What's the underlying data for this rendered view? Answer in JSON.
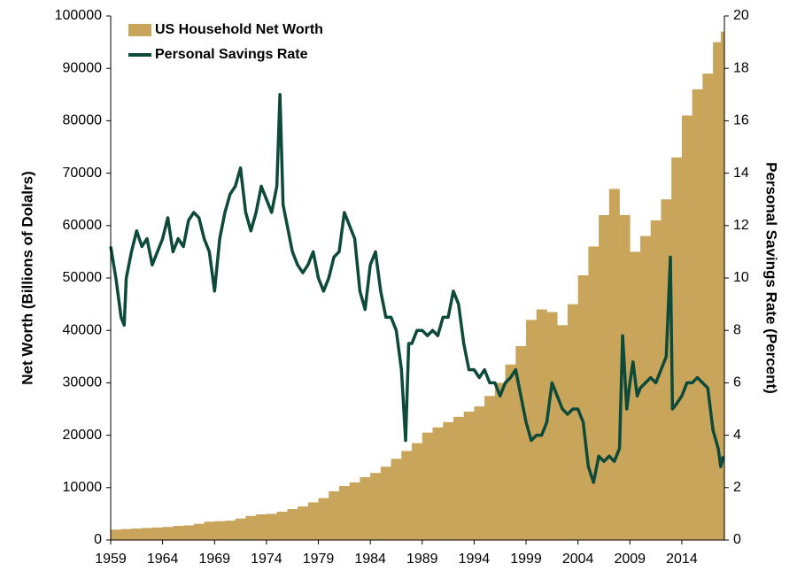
{
  "chart_data": {
    "type": "bar-line",
    "ylabel": "Net Worth (Billions of Dolalrs)",
    "y2label": "Personal Savings Rate (Percent)",
    "xlim": [
      1959,
      2018.1
    ],
    "xticks": [
      1959,
      1964,
      1969,
      1974,
      1979,
      1984,
      1989,
      1994,
      1999,
      2004,
      2009,
      2014
    ],
    "ylim": [
      0,
      100000
    ],
    "yticks": [
      0,
      10000,
      20000,
      30000,
      40000,
      50000,
      60000,
      70000,
      80000,
      90000,
      100000
    ],
    "y2lim": [
      0,
      20
    ],
    "y2ticks": [
      0,
      2,
      4,
      6,
      8,
      10,
      12,
      14,
      16,
      18,
      20
    ],
    "legend": "upper left",
    "series": [
      {
        "name": "US Household Net Worth",
        "color": "#c9a55c",
        "type": "bar",
        "x": [
          1959,
          1960,
          1961,
          1962,
          1963,
          1964,
          1965,
          1966,
          1967,
          1968,
          1969,
          1970,
          1971,
          1972,
          1973,
          1974,
          1975,
          1976,
          1977,
          1978,
          1979,
          1980,
          1981,
          1982,
          1983,
          1984,
          1985,
          1986,
          1987,
          1988,
          1989,
          1990,
          1991,
          1992,
          1993,
          1994,
          1995,
          1996,
          1997,
          1998,
          1999,
          2000,
          2001,
          2002,
          2003,
          2004,
          2005,
          2006,
          2007,
          2008,
          2009,
          2010,
          2011,
          2012,
          2013,
          2014,
          2015,
          2016,
          2017,
          2017.75
        ],
        "values": [
          2000,
          2100,
          2200,
          2300,
          2400,
          2500,
          2700,
          2800,
          3100,
          3500,
          3600,
          3700,
          4100,
          4600,
          4900,
          5000,
          5400,
          5900,
          6400,
          7200,
          8000,
          9300,
          10300,
          11000,
          12000,
          12800,
          14000,
          15500,
          17000,
          18500,
          20500,
          21500,
          22500,
          23500,
          24500,
          25500,
          27500,
          30000,
          33500,
          37000,
          42000,
          44000,
          43500,
          41000,
          45000,
          50500,
          56000,
          62000,
          67000,
          62000,
          55000,
          58000,
          61000,
          65000,
          73000,
          81000,
          86000,
          89000,
          95000,
          97000
        ]
      },
      {
        "name": "Personal Savings Rate",
        "color": "#0d4a3a",
        "type": "line",
        "axis": "y2",
        "x": [
          1959,
          1959.5,
          1960,
          1960.3,
          1960.5,
          1961,
          1961.5,
          1962,
          1962.5,
          1963,
          1963.5,
          1964,
          1964.5,
          1965,
          1965.5,
          1966,
          1966.5,
          1967,
          1967.5,
          1968,
          1968.5,
          1969,
          1969.5,
          1970,
          1970.5,
          1971,
          1971.5,
          1972,
          1972.5,
          1973,
          1973.5,
          1974,
          1974.5,
          1975,
          1975.3,
          1975.6,
          1976,
          1976.5,
          1977,
          1977.5,
          1978,
          1978.5,
          1979,
          1979.5,
          1980,
          1980.5,
          1981,
          1981.5,
          1982,
          1982.5,
          1983,
          1983.5,
          1984,
          1984.5,
          1985,
          1985.5,
          1986,
          1986.5,
          1987,
          1987.4,
          1987.7,
          1988,
          1988.5,
          1989,
          1989.5,
          1990,
          1990.5,
          1991,
          1991.5,
          1992,
          1992.5,
          1993,
          1993.5,
          1994,
          1994.5,
          1995,
          1995.5,
          1996,
          1996.5,
          1997,
          1997.5,
          1998,
          1998.5,
          1999,
          1999.5,
          2000,
          2000.5,
          2001,
          2001.5,
          2002,
          2002.5,
          2003,
          2003.5,
          2004,
          2004.5,
          2005,
          2005.5,
          2006,
          2006.5,
          2007,
          2007.5,
          2008,
          2008.3,
          2008.7,
          2009,
          2009.3,
          2009.7,
          2010,
          2010.5,
          2011,
          2011.5,
          2012,
          2012.5,
          2012.9,
          2013.1,
          2013.5,
          2014,
          2014.5,
          2015,
          2015.5,
          2016,
          2016.5,
          2017,
          2017.5,
          2017.75,
          2018
        ],
        "values": [
          11.2,
          10,
          8.5,
          8.2,
          10,
          11,
          11.8,
          11.2,
          11.5,
          10.5,
          11,
          11.5,
          12.3,
          11,
          11.5,
          11.2,
          12.2,
          12.5,
          12.3,
          11.5,
          11,
          9.5,
          11.5,
          12.5,
          13.2,
          13.5,
          14.2,
          12.5,
          11.8,
          12.5,
          13.5,
          13,
          12.5,
          13.5,
          17,
          12.8,
          12,
          11,
          10.5,
          10.2,
          10.5,
          11,
          10,
          9.5,
          10,
          10.8,
          11,
          12.5,
          12,
          11.5,
          9.5,
          8.8,
          10.5,
          11,
          9.5,
          8.5,
          8.5,
          8,
          6.5,
          3.8,
          7.5,
          7.5,
          8,
          8,
          7.8,
          8,
          7.8,
          8.5,
          8.5,
          9.5,
          9,
          7.5,
          6.5,
          6.5,
          6.2,
          6.5,
          6,
          6,
          5.5,
          6,
          6.2,
          6.5,
          5.5,
          4.5,
          3.8,
          4,
          4,
          4.5,
          6,
          5.5,
          5,
          4.8,
          5,
          5,
          4.5,
          2.8,
          2.2,
          3.2,
          3,
          3.2,
          3,
          3.5,
          7.8,
          5,
          6,
          6.8,
          5.5,
          5.8,
          6,
          6.2,
          6,
          6.5,
          7,
          10.8,
          5,
          5.2,
          5.5,
          6,
          6,
          6.2,
          6,
          5.8,
          4.2,
          3.5,
          2.8,
          3.2
        ]
      }
    ]
  }
}
